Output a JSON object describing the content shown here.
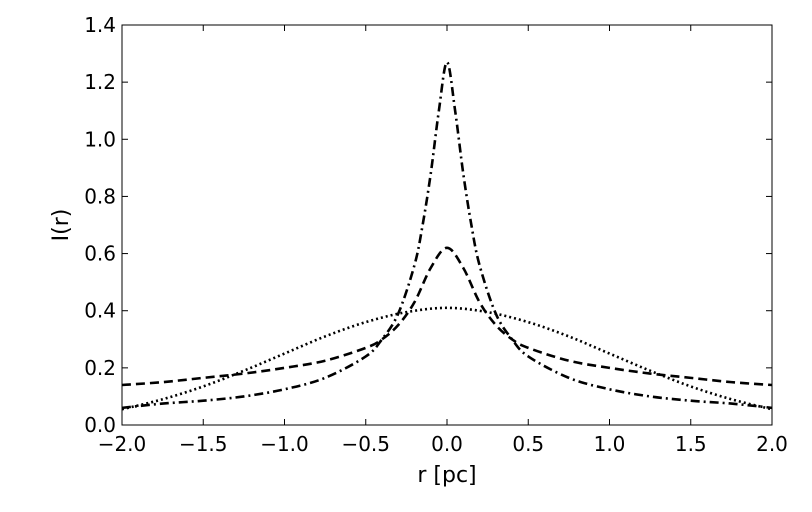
{
  "chart_data": {
    "type": "line",
    "xlabel": "r [pc]",
    "ylabel": "I(r)",
    "xlim": [
      -2.0,
      2.0
    ],
    "ylim": [
      0.0,
      1.4
    ],
    "x_ticks": [
      "−2.0",
      "−1.5",
      "−1.0",
      "−0.5",
      "0.0",
      "0.5",
      "1.0",
      "1.5",
      "2.0"
    ],
    "y_ticks": [
      "0.0",
      "0.2",
      "0.4",
      "0.6",
      "0.8",
      "1.0",
      "1.2",
      "1.4"
    ],
    "grid": false,
    "legend": "none",
    "series": [
      {
        "style": "dotted",
        "color": "#000000",
        "x": [
          -2.0,
          -1.75,
          -1.5,
          -1.25,
          -1.0,
          -0.75,
          -0.5,
          -0.25,
          0.0,
          0.25,
          0.5,
          0.75,
          1.0,
          1.25,
          1.5,
          1.75,
          2.0
        ],
        "y": [
          0.055,
          0.09,
          0.135,
          0.19,
          0.25,
          0.31,
          0.36,
          0.395,
          0.41,
          0.395,
          0.36,
          0.31,
          0.25,
          0.19,
          0.135,
          0.09,
          0.055
        ]
      },
      {
        "style": "dashed",
        "color": "#000000",
        "x": [
          -2.0,
          -1.75,
          -1.5,
          -1.25,
          -1.0,
          -0.75,
          -0.5,
          -0.4,
          -0.3,
          -0.2,
          -0.1,
          0.0,
          0.1,
          0.2,
          0.3,
          0.4,
          0.5,
          0.75,
          1.0,
          1.25,
          1.5,
          1.75,
          2.0
        ],
        "y": [
          0.14,
          0.15,
          0.165,
          0.18,
          0.2,
          0.225,
          0.27,
          0.3,
          0.35,
          0.43,
          0.55,
          0.62,
          0.55,
          0.43,
          0.35,
          0.3,
          0.27,
          0.225,
          0.2,
          0.18,
          0.165,
          0.15,
          0.14
        ]
      },
      {
        "style": "dashdot",
        "color": "#000000",
        "x": [
          -2.0,
          -1.75,
          -1.5,
          -1.25,
          -1.0,
          -0.75,
          -0.5,
          -0.4,
          -0.3,
          -0.2,
          -0.15,
          -0.1,
          -0.05,
          0.0,
          0.05,
          0.1,
          0.15,
          0.2,
          0.3,
          0.4,
          0.5,
          0.75,
          1.0,
          1.25,
          1.5,
          1.75,
          2.0
        ],
        "y": [
          0.06,
          0.075,
          0.085,
          0.1,
          0.125,
          0.165,
          0.24,
          0.3,
          0.39,
          0.56,
          0.7,
          0.88,
          1.1,
          1.27,
          1.1,
          0.88,
          0.7,
          0.56,
          0.39,
          0.3,
          0.24,
          0.165,
          0.125,
          0.1,
          0.085,
          0.075,
          0.06
        ]
      }
    ]
  }
}
